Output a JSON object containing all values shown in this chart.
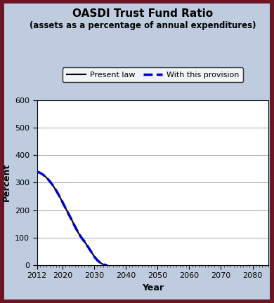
{
  "title": "OASDI Trust Fund Ratio",
  "subtitle": "(assets as a percentage of annual expenditures)",
  "xlabel": "Year",
  "ylabel": "Percent",
  "xlim": [
    2012,
    2085
  ],
  "ylim": [
    0,
    600
  ],
  "yticks": [
    0,
    100,
    200,
    300,
    400,
    500,
    600
  ],
  "xticks": [
    2012,
    2020,
    2030,
    2040,
    2050,
    2060,
    2070,
    2080
  ],
  "background_color": "#bfcce0",
  "outer_background": "#6b1525",
  "plot_background": "#ffffff",
  "present_law": {
    "years": [
      2012,
      2013,
      2014,
      2015,
      2016,
      2017,
      2018,
      2019,
      2020,
      2021,
      2022,
      2023,
      2024,
      2025,
      2026,
      2027,
      2028,
      2029,
      2030,
      2031,
      2032,
      2033,
      2034
    ],
    "values": [
      340,
      335,
      328,
      318,
      305,
      290,
      272,
      252,
      230,
      207,
      185,
      163,
      140,
      118,
      100,
      85,
      68,
      50,
      32,
      18,
      8,
      2,
      0
    ],
    "color": "#000000",
    "linestyle": "-",
    "linewidth": 1.5,
    "label": "Present law"
  },
  "provision": {
    "years": [
      2012,
      2013,
      2014,
      2015,
      2016,
      2017,
      2018,
      2019,
      2020,
      2021,
      2022,
      2023,
      2024,
      2025,
      2026,
      2027,
      2028,
      2029,
      2030,
      2031,
      2032,
      2033,
      2034
    ],
    "values": [
      340,
      335,
      328,
      318,
      305,
      290,
      272,
      252,
      230,
      207,
      185,
      163,
      140,
      118,
      100,
      85,
      68,
      50,
      32,
      18,
      8,
      2,
      0
    ],
    "color": "#0000cc",
    "linestyle": "--",
    "linewidth": 2.5,
    "label": "With this provision"
  },
  "title_fontsize": 11,
  "subtitle_fontsize": 8.5,
  "axis_label_fontsize": 9,
  "tick_fontsize": 8,
  "legend_fontsize": 8
}
